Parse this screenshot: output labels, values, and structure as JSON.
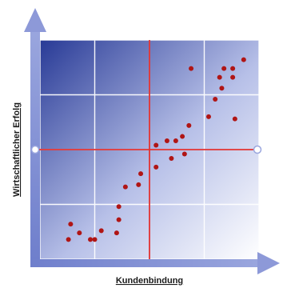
{
  "chart_data": {
    "type": "scatter",
    "xlabel": "Kundenbindung",
    "ylabel": "Wirtschaftlicher Erfolg",
    "xlim": [
      0,
      100
    ],
    "ylim": [
      0,
      100
    ],
    "grid": true,
    "grid_divisions": 4,
    "threshold_x": 50,
    "threshold_y": 50,
    "colors": {
      "point": "#b01515",
      "threshold_line": "#e03030",
      "grid": "#ffffff",
      "axis": "#7b8ad0",
      "gradient_dark": "#283a96",
      "gradient_light": "#ffffff"
    },
    "points": [
      {
        "x": 14,
        "y": 16
      },
      {
        "x": 18,
        "y": 12
      },
      {
        "x": 13,
        "y": 9
      },
      {
        "x": 23,
        "y": 9
      },
      {
        "x": 25,
        "y": 9
      },
      {
        "x": 28,
        "y": 13
      },
      {
        "x": 35,
        "y": 12
      },
      {
        "x": 36,
        "y": 18
      },
      {
        "x": 36,
        "y": 24
      },
      {
        "x": 39,
        "y": 33
      },
      {
        "x": 45,
        "y": 34
      },
      {
        "x": 46,
        "y": 39
      },
      {
        "x": 53,
        "y": 42
      },
      {
        "x": 53,
        "y": 52
      },
      {
        "x": 58,
        "y": 54
      },
      {
        "x": 60,
        "y": 46
      },
      {
        "x": 62,
        "y": 54
      },
      {
        "x": 66,
        "y": 48
      },
      {
        "x": 65,
        "y": 56
      },
      {
        "x": 68,
        "y": 61
      },
      {
        "x": 69,
        "y": 87
      },
      {
        "x": 77,
        "y": 65
      },
      {
        "x": 80,
        "y": 73
      },
      {
        "x": 82,
        "y": 83
      },
      {
        "x": 83,
        "y": 78
      },
      {
        "x": 84,
        "y": 87
      },
      {
        "x": 88,
        "y": 87
      },
      {
        "x": 88,
        "y": 83
      },
      {
        "x": 89,
        "y": 64
      },
      {
        "x": 93,
        "y": 91
      }
    ]
  }
}
